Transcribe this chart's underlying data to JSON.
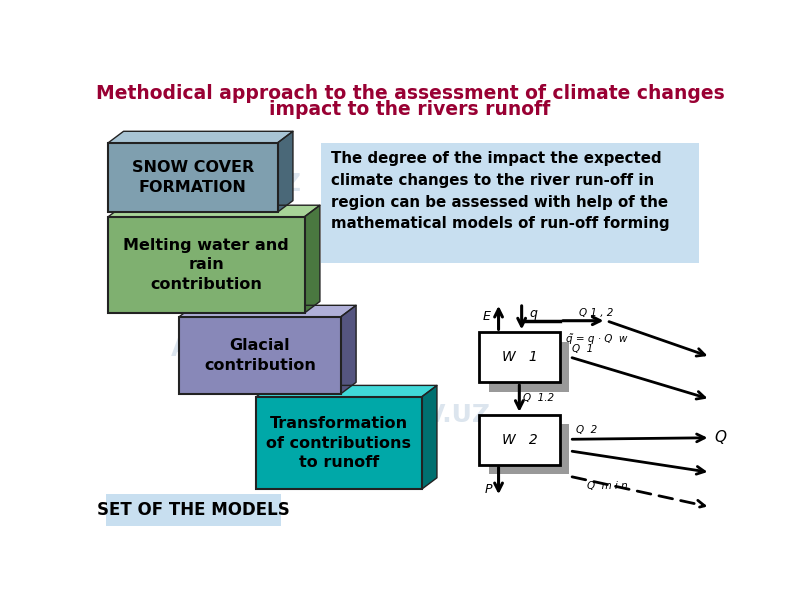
{
  "title_line1": "Methodical approach to the assessment of climate changes",
  "title_line2": "impact to the rivers runoff",
  "title_color": "#990033",
  "bg_color": "#ffffff",
  "box1_text": "SNOW COVER\nFORMATION",
  "box1_face": "#7f9faf",
  "box1_top": "#a8c4d4",
  "box1_side": "#4a6878",
  "box2_text": "Melting water and\nrain\ncontribution",
  "box2_face": "#7fb070",
  "box2_top": "#a8d498",
  "box2_side": "#4a7840",
  "box3_text": "Glacial\ncontribution",
  "box3_face": "#8888b8",
  "box3_top": "#b0b0d8",
  "box3_side": "#555580",
  "box4_text": "Transformation\nof contributions\nto runoff",
  "box4_face": "#00a8a8",
  "box4_top": "#40d8d8",
  "box4_side": "#007070",
  "info_box_text": "The degree of the impact the expected\nclimate changes to the river run-off in\nregion can be assessed with help of the\nmathematical models of run-off forming",
  "info_box_color": "#c8dff0",
  "set_box_color": "#c8dff0",
  "set_box_text": "SET OF THE MODELS",
  "arxiv_color": "#c0d0e0",
  "W1_label": "W   1",
  "W2_label": "W   2",
  "diagram_shadow": "#999999",
  "Q_label": "Q",
  "E_label": "E",
  "q_label": "q",
  "P_label": "P",
  "Q12_label": "Q 1 , 2",
  "Q1_label": "Q  1",
  "Q12_down_label": "Q  1.2",
  "Q2_label": "Q  2",
  "Qmin_label": "Q  m i n",
  "qeq_label": "q̃ = q · Q  w"
}
